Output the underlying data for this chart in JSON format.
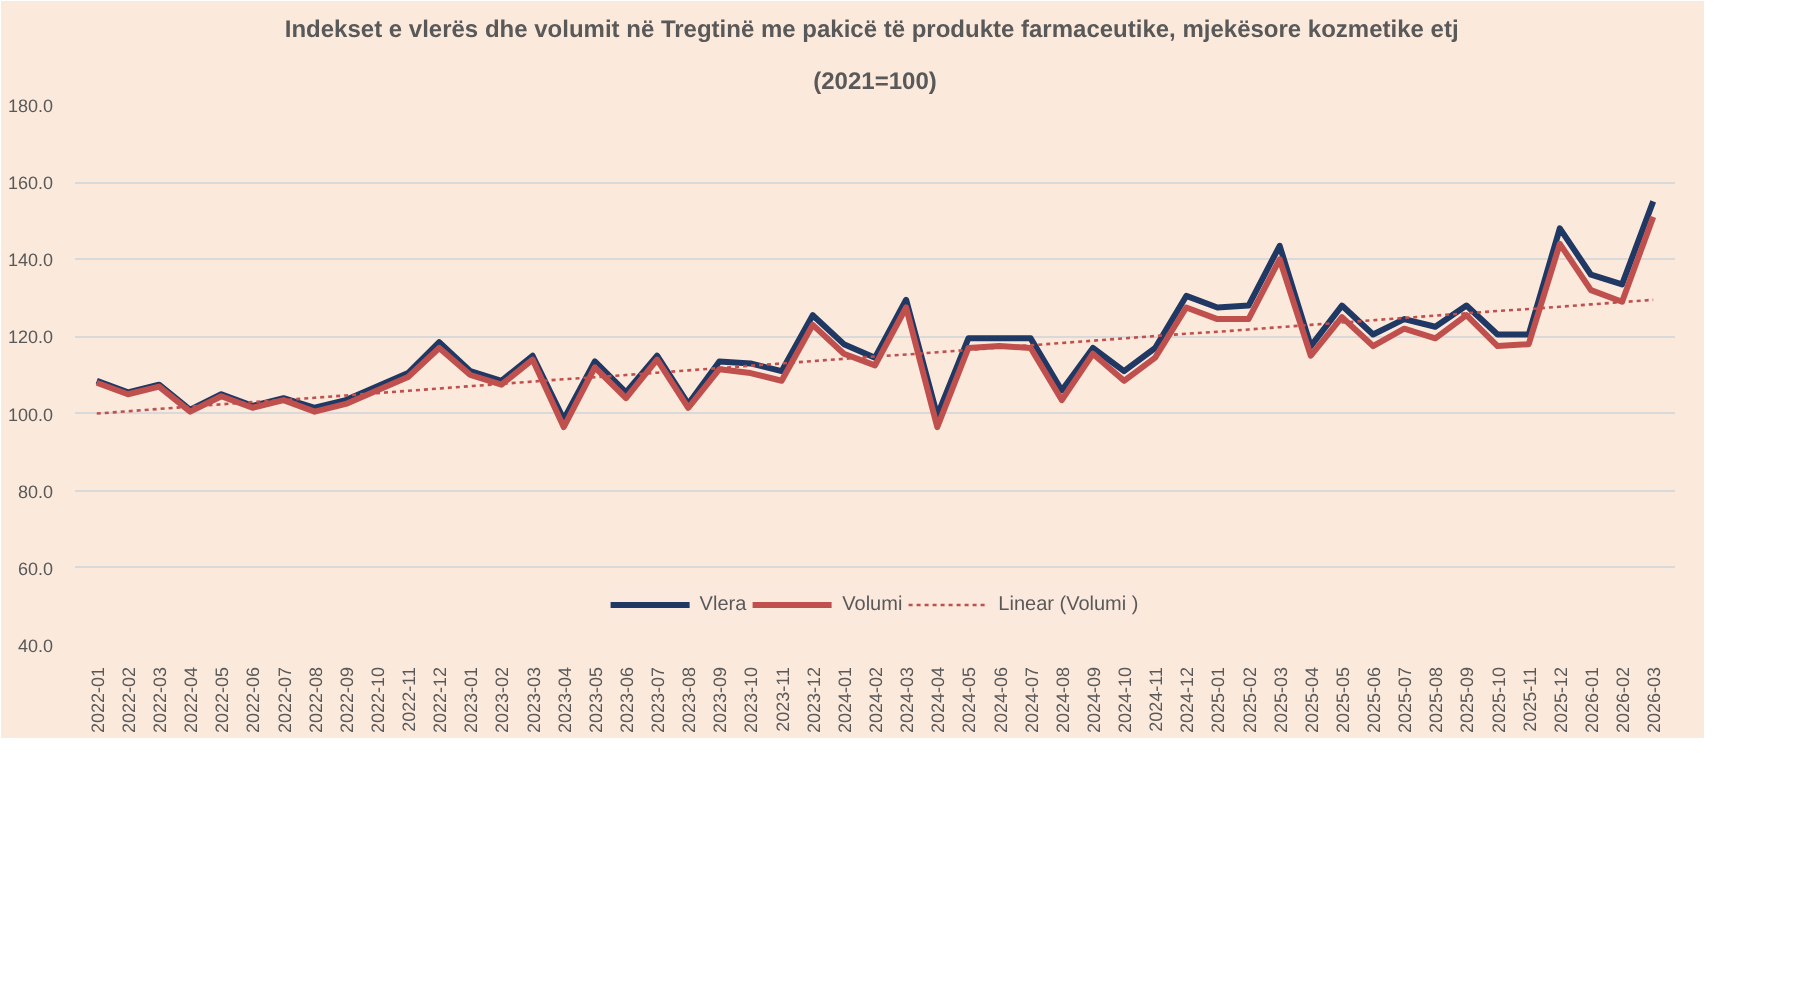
{
  "chart_data": {
    "type": "line",
    "title": "Indekset e vlerës dhe volumit në Tregtinë me pakicë të produkte farmaceutike, mjekësore  kozmetike etj",
    "subtitle": "(2021=100)",
    "categories": [
      "2022-01",
      "2022-02",
      "2022-03",
      "2022-04",
      "2022-05",
      "2022-06",
      "2022-07",
      "2022-08",
      "2022-09",
      "2022-10",
      "2022-11",
      "2022-12",
      "2023-01",
      "2023-02",
      "2023-03",
      "2023-04",
      "2023-05",
      "2023-06",
      "2023-07",
      "2023-08",
      "2023-09",
      "2023-10",
      "2023-11",
      "2023-12",
      "2024-01",
      "2024-02",
      "2024-03",
      "2024-04",
      "2024-05",
      "2024-06",
      "2024-07",
      "2024-08",
      "2024-09",
      "2024-10",
      "2024-11",
      "2024-12",
      "2025-01",
      "2025-02",
      "2025-03",
      "2025-04",
      "2025-05",
      "2025-06",
      "2025-07",
      "2025-08",
      "2025-09",
      "2025-10",
      "2025-11",
      "2025-12",
      "2026-01",
      "2026-02",
      "2026-03"
    ],
    "series": [
      {
        "name": "Vlera",
        "color": "#1f3864",
        "line_style": "solid",
        "values": [
          108.5,
          105.5,
          107.5,
          101,
          105,
          102,
          104,
          101.5,
          103.5,
          107,
          110.5,
          118.5,
          111,
          108.5,
          115,
          98.5,
          113.5,
          105.5,
          115,
          102.5,
          113.5,
          113,
          111,
          125.5,
          118,
          114.5,
          129.5,
          99.5,
          119.5,
          119.5,
          119.5,
          106,
          117,
          111,
          117,
          130.5,
          127.5,
          128,
          143.5,
          117.5,
          128,
          120.5,
          124.5,
          122.5,
          128,
          120.5,
          120.5,
          148,
          136,
          133.5,
          155
        ]
      },
      {
        "name": "Volumi",
        "color": "#c0504d",
        "line_style": "solid",
        "values": [
          108,
          105,
          107,
          100.5,
          104.5,
          101.5,
          103.5,
          100.5,
          102.5,
          106,
          109.5,
          117,
          110,
          107.5,
          114,
          96.5,
          112,
          104,
          114,
          101.5,
          111.5,
          110.5,
          108.5,
          123,
          115.5,
          112.5,
          127.5,
          96.5,
          117,
          117.5,
          117,
          103.5,
          115.5,
          108.5,
          114.5,
          127.5,
          124.5,
          124.5,
          140,
          115,
          125,
          117.5,
          122,
          119.5,
          125.5,
          117.5,
          118,
          144,
          132,
          129,
          151
        ]
      },
      {
        "name": "Linear (Volumi )",
        "color": "#c0504d",
        "line_style": "dotted",
        "values": [
          100,
          100.6,
          101.2,
          101.8,
          102.4,
          103,
          103.5,
          104.1,
          104.7,
          105.3,
          105.9,
          106.5,
          107.1,
          107.7,
          108.3,
          108.9,
          109.4,
          110,
          110.6,
          111.2,
          111.8,
          112.4,
          113,
          113.6,
          114.2,
          114.8,
          115.3,
          115.9,
          116.5,
          117.1,
          117.7,
          118.3,
          118.9,
          119.5,
          120.1,
          120.7,
          121.2,
          121.8,
          122.4,
          123,
          123.6,
          124.2,
          124.8,
          125.4,
          126,
          126.6,
          127.1,
          127.7,
          128.3,
          128.9,
          129.5
        ]
      }
    ],
    "ylim": [
      40,
      180
    ],
    "yticks": [
      {
        "value": 40,
        "label": "40.0"
      },
      {
        "value": 60,
        "label": "60.0"
      },
      {
        "value": 80,
        "label": "80.0"
      },
      {
        "value": 100,
        "label": "100.0"
      },
      {
        "value": 120,
        "label": "120.0"
      },
      {
        "value": 140,
        "label": "140.0"
      },
      {
        "value": 160,
        "label": "160.0"
      },
      {
        "value": 180,
        "label": "180.0"
      }
    ],
    "grid": "y",
    "legend": "bottom",
    "marker": "none"
  }
}
